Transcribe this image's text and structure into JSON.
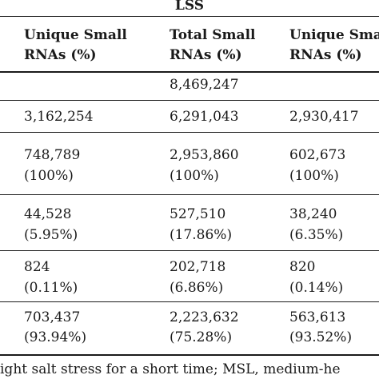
{
  "table": {
    "group_label": "LSS",
    "headers": [
      {
        "line1": "Unique Small",
        "line2": "RNAs (%)"
      },
      {
        "line1": "Total Small",
        "line2": "RNAs (%)"
      },
      {
        "line1": "Unique Sma",
        "line2": "RNAs (%)"
      }
    ],
    "rows": [
      {
        "cells": [
          [
            "",
            ""
          ],
          [
            "8,469,247",
            ""
          ],
          [
            "",
            ""
          ]
        ]
      },
      {
        "cells": [
          [
            "3,162,254",
            ""
          ],
          [
            "6,291,043",
            ""
          ],
          [
            "2,930,417",
            ""
          ]
        ]
      },
      {
        "cells": [
          [
            "748,789",
            "(100%)"
          ],
          [
            "2,953,860",
            "(100%)"
          ],
          [
            "602,673",
            "(100%)"
          ]
        ]
      },
      {
        "cells": [
          [
            "44,528",
            "(5.95%)"
          ],
          [
            "527,510",
            "(17.86%)"
          ],
          [
            "38,240",
            "(6.35%)"
          ]
        ]
      },
      {
        "cells": [
          [
            "824",
            "(0.11%)"
          ],
          [
            "202,718",
            "(6.86%)"
          ],
          [
            "820",
            "(0.14%)"
          ]
        ]
      },
      {
        "cells": [
          [
            "703,437",
            "(93.94%)"
          ],
          [
            "2,223,632",
            "(75.28%)"
          ],
          [
            "563,613",
            "(93.52%)"
          ]
        ]
      }
    ],
    "footnote": "ight salt stress for a short time; MSL, medium-he"
  }
}
